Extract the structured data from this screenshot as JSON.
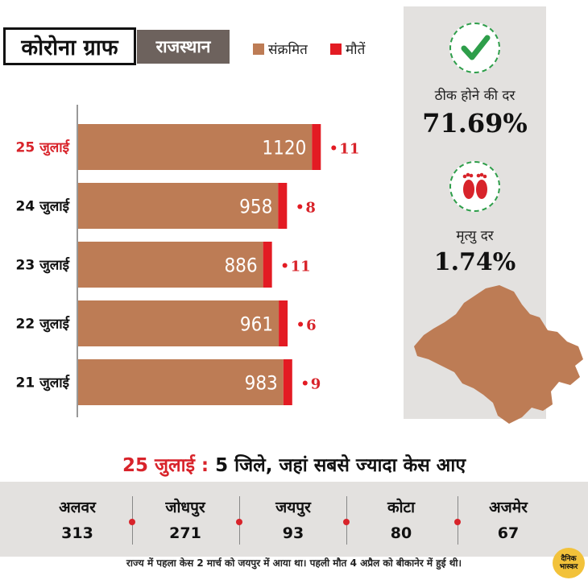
{
  "header": {
    "title": "कोरोना ग्राफ",
    "region": "राजस्थान",
    "legend": [
      {
        "label": "संक्रमित",
        "color": "#bd7c55"
      },
      {
        "label": "मौतें",
        "color": "#e31b23"
      }
    ]
  },
  "chart_data": {
    "type": "bar",
    "orientation": "horizontal",
    "stacked": true,
    "categories": [
      "25 जुलाई",
      "24 जुलाई",
      "23 जुलाई",
      "22 जुलाई",
      "21 जुलाई"
    ],
    "highlight_category": "25 जुलाई",
    "series": [
      {
        "name": "संक्रमित",
        "values": [
          1120,
          958,
          886,
          961,
          983
        ],
        "color": "#bd7c55"
      },
      {
        "name": "मौतें",
        "values": [
          11,
          8,
          11,
          6,
          9
        ],
        "color": "#e31b23"
      }
    ],
    "xlabel": "",
    "ylabel": "",
    "grid": false,
    "legend_position": "top"
  },
  "side": {
    "recovery_label": "ठीक होने की दर",
    "recovery_value": "71.69%",
    "death_label": "मृत्यु दर",
    "death_value": "1.74%",
    "recovery_icon": "check-icon",
    "death_icon": "footprints-icon",
    "map_icon": "rajasthan-map-icon"
  },
  "bottom": {
    "date": "25 जुलाई",
    "sep": ":",
    "title": "5 जिले, जहां सबसे ज्यादा केस आए",
    "districts": [
      {
        "name": "अलवर",
        "value": "313"
      },
      {
        "name": "जोधपुर",
        "value": "271"
      },
      {
        "name": "जयपुर",
        "value": "93"
      },
      {
        "name": "कोटा",
        "value": "80"
      },
      {
        "name": "अजमेर",
        "value": "67"
      }
    ],
    "footnote": "राज्य में पहला केस 2 मार्च को जयपुर में आया था। पहली मौत 4 अप्रैल को बीकानेर में हुई थी।"
  },
  "logo": {
    "line1": "दैनिक",
    "line2": "भास्कर"
  }
}
